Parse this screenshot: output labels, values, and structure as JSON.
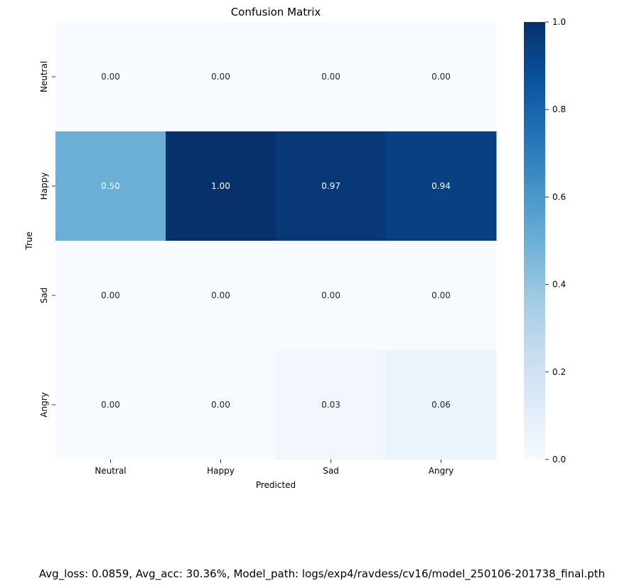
{
  "chart_data": {
    "type": "heatmap",
    "title": "Confusion Matrix",
    "xlabel": "Predicted",
    "ylabel": "True",
    "x_categories": [
      "Neutral",
      "Happy",
      "Sad",
      "Angry"
    ],
    "y_categories": [
      "Neutral",
      "Happy",
      "Sad",
      "Angry"
    ],
    "values": [
      [
        0.0,
        0.0,
        0.0,
        0.0
      ],
      [
        0.5,
        1.0,
        0.97,
        0.94
      ],
      [
        0.0,
        0.0,
        0.0,
        0.0
      ],
      [
        0.0,
        0.0,
        0.03,
        0.06
      ]
    ],
    "value_format": "0.00",
    "colormap": "Blues",
    "colorbar": {
      "range": [
        0.0,
        1.0
      ],
      "ticks": [
        "0.0",
        "0.2",
        "0.4",
        "0.6",
        "0.8",
        "1.0"
      ]
    }
  },
  "footer_text": "Avg_loss: 0.0859, Avg_acc: 30.36%, Model_path: logs/exp4/ravdess/cv16/model_250106-201738_final.pth"
}
